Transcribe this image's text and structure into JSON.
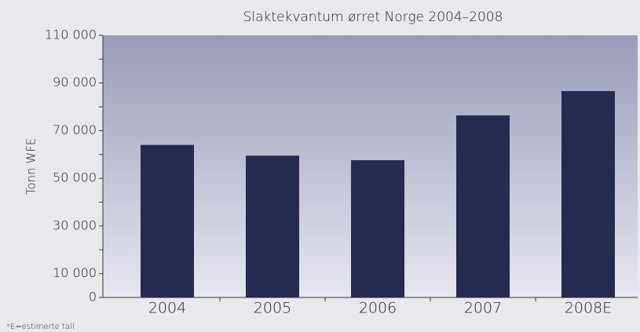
{
  "chart_data": {
    "type": "bar",
    "title": "Slaktekvantum ørret Norge 2004–2008",
    "y_label": "Tonn WFE",
    "footnote": "*E=estimerte tall",
    "categories": [
      "2004",
      "2005",
      "2006",
      "2007",
      "2008E"
    ],
    "values": [
      64000,
      59500,
      57600,
      76400,
      86600
    ],
    "color": "#262a50",
    "ylim": [
      0,
      110000
    ],
    "yticks": [
      0,
      {
        "value": 10000,
        "label": "10 000"
      },
      {
        "value": 30000,
        "label": "30 000"
      },
      {
        "value": 50000,
        "label": "50 000"
      },
      {
        "value": 70000,
        "label": "70 000"
      },
      {
        "value": 90000,
        "label": "90 000"
      },
      {
        "value": 110000,
        "label": "110 000"
      }
    ],
    "minor_yticks": [
      20000,
      40000,
      60000,
      80000,
      100000
    ],
    "grid": false
  }
}
